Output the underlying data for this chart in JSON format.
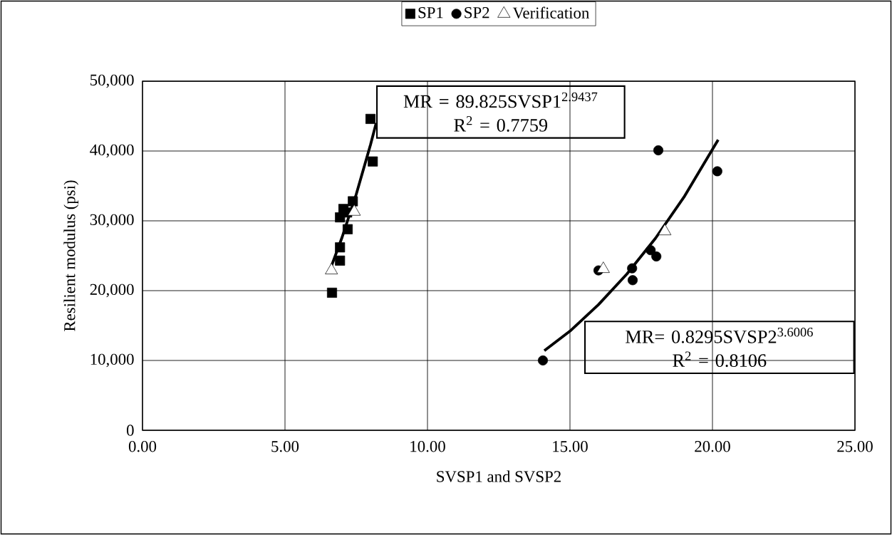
{
  "chart_data": {
    "type": "scatter",
    "xlabel": "SVSP1 and SVSP2",
    "ylabel": "Resilient modulus (psi)",
    "xlim": [
      0,
      25
    ],
    "xticks": [
      {
        "value": 0,
        "label": "0.00"
      },
      {
        "value": 5,
        "label": "5.00"
      },
      {
        "value": 10,
        "label": "10.00"
      },
      {
        "value": 15,
        "label": "15.00"
      },
      {
        "value": 20,
        "label": "20.00"
      },
      {
        "value": 25,
        "label": "25.00"
      }
    ],
    "ylim": [
      0,
      50000
    ],
    "yticks": [
      {
        "value": 0,
        "label": "0"
      },
      {
        "value": 10000,
        "label": "10,000"
      },
      {
        "value": 20000,
        "label": "20,000"
      },
      {
        "value": 30000,
        "label": "30,000"
      },
      {
        "value": 40000,
        "label": "40,000"
      },
      {
        "value": 50000,
        "label": "50,000"
      }
    ],
    "grid": true,
    "legend": "top",
    "series": [
      {
        "name": "SP1",
        "color": "#000000",
        "marker": "square",
        "x": [
          6.65,
          6.93,
          6.93,
          7.2,
          6.93,
          7.05,
          7.38,
          7.18,
          8.0,
          8.08
        ],
        "values": [
          19700,
          24300,
          26200,
          28800,
          30500,
          31700,
          32800,
          31200,
          44600,
          38500
        ]
      },
      {
        "name": "SP2",
        "color": "#000000",
        "marker": "circle",
        "x": [
          14.05,
          16.0,
          17.18,
          17.2,
          17.83,
          18.03,
          18.1,
          20.17
        ],
        "values": [
          10000,
          22900,
          23200,
          21500,
          25800,
          24900,
          40100,
          37100
        ]
      },
      {
        "name": "Verification",
        "color": "#000000",
        "marker": "triangle",
        "x": [
          6.63,
          7.43,
          16.17,
          18.33
        ],
        "values": [
          22900,
          31300,
          23100,
          28500
        ]
      },
      {
        "type": "line",
        "color": "#000000",
        "marker": "none",
        "x": [
          6.6,
          7.0,
          7.5,
          8.0,
          8.2
        ],
        "values": [
          23200,
          27600,
          33800,
          40900,
          44000
        ]
      },
      {
        "type": "line",
        "color": "#000000",
        "marker": "none",
        "x": [
          14.1,
          15.0,
          16.0,
          17.0,
          18.0,
          19.0,
          20.2
        ],
        "values": [
          11400,
          14200,
          18000,
          22400,
          27500,
          33400,
          41600
        ]
      }
    ],
    "annotations": [
      "MR = 89.825SVSP1$^{2.9437}$",
      "R$^{2}$ = 0.7759",
      "MR= 0.8295SVSP2$^{3.6006}$",
      "R$^{2}$ = 0.8106"
    ]
  }
}
